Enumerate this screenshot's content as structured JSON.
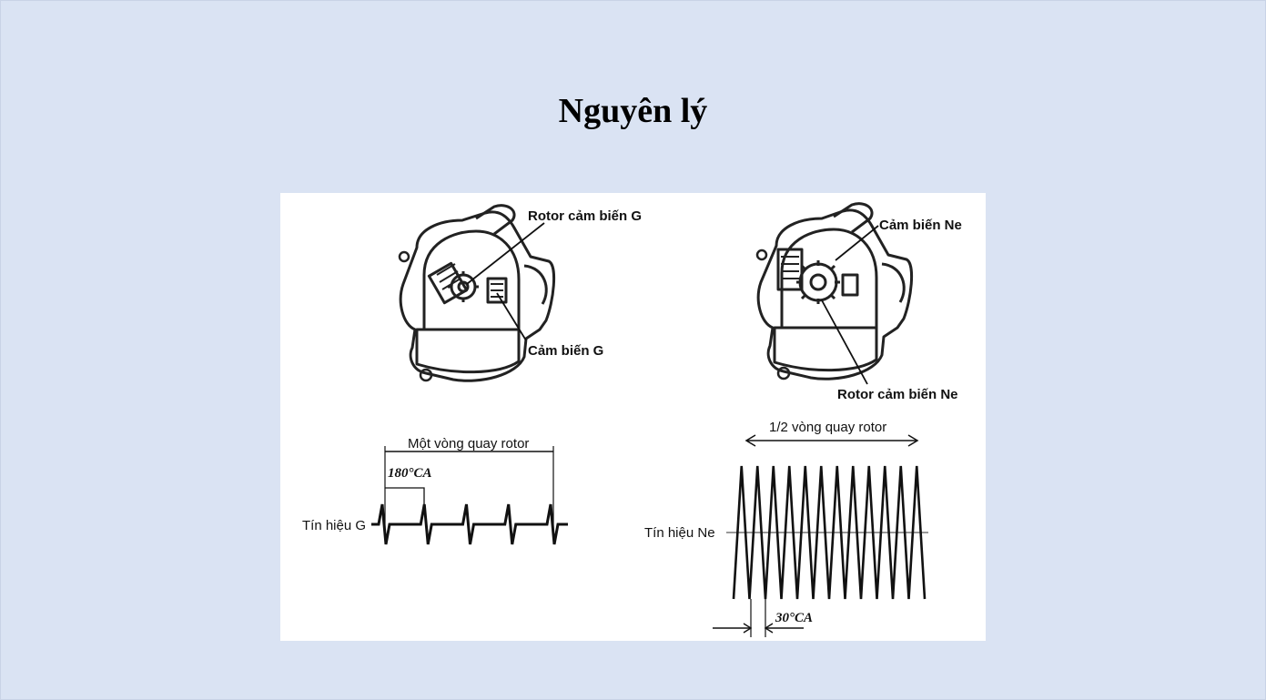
{
  "slide": {
    "title": "Nguyên lý"
  },
  "figure": {
    "left_device": {
      "rotor_label": "Rotor cảm biến G",
      "sensor_label": "Cảm biến G"
    },
    "right_device": {
      "sensor_label": "Cảm biến Ne",
      "rotor_label": "Rotor cảm biến Ne"
    },
    "g_signal": {
      "span_label": "Một vòng quay rotor",
      "angle_label": "180°CA",
      "signal_label": "Tín hiệu G",
      "pulses": 5
    },
    "ne_signal": {
      "span_label": "1/2 vòng quay rotor",
      "angle_label": "30°CA",
      "signal_label": "Tín hiệu Ne",
      "cycles": 12
    }
  }
}
